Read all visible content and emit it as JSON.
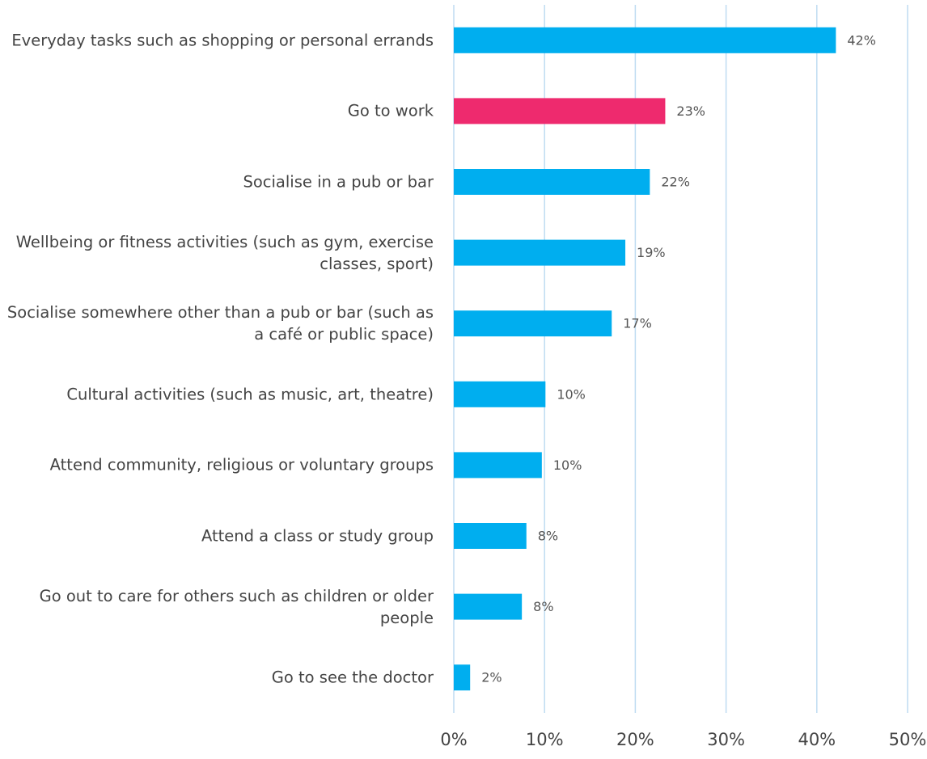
{
  "chart_data": {
    "type": "bar",
    "orientation": "horizontal",
    "categories": [
      "Everyday tasks such as shopping or personal errands",
      "Go to work",
      "Socialise in a pub or bar",
      "Wellbeing or fitness activities (such as gym, exercise classes, sport)",
      "Socialise somewhere other than a pub or bar (such as a café or public space)",
      "Cultural activities (such as music, art, theatre)",
      "Attend community, religious or voluntary groups",
      "Attend a class or study group",
      "Go out to care for others such as children or older people",
      "Go to see the doctor"
    ],
    "values": [
      42.1,
      23.3,
      21.6,
      18.9,
      17.4,
      10.1,
      9.7,
      8.0,
      7.5,
      1.8
    ],
    "value_labels": [
      "42%",
      "23%",
      "22%",
      "19%",
      "17%",
      "10%",
      "10%",
      "8%",
      "8%",
      "2%"
    ],
    "colors": [
      "#00aeef",
      "#ee2a6e",
      "#00aeef",
      "#00aeef",
      "#00aeef",
      "#00aeef",
      "#00aeef",
      "#00aeef",
      "#00aeef",
      "#00aeef"
    ],
    "xlim": [
      0,
      50
    ],
    "xticks": [
      {
        "value": 0,
        "label": "0%"
      },
      {
        "value": 10,
        "label": "10%"
      },
      {
        "value": 20,
        "label": "20%"
      },
      {
        "value": 30,
        "label": "30%"
      },
      {
        "value": 40,
        "label": "40%"
      },
      {
        "value": 50,
        "label": "50%"
      }
    ],
    "grid": true
  }
}
